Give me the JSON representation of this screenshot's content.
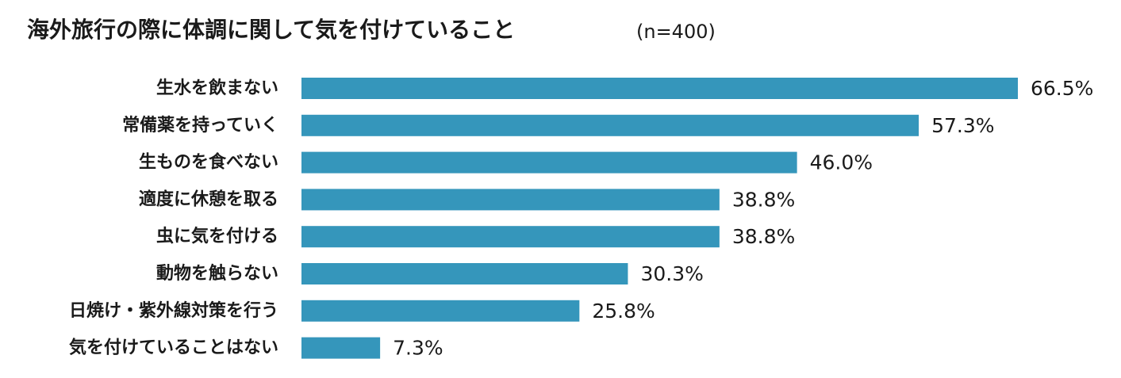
{
  "chart_data": {
    "type": "bar",
    "orientation": "horizontal",
    "title": "海外旅行の際に体調に関して気を付けていること",
    "subtitle": "(n=400)",
    "categories": [
      "生水を飲まない",
      "常備薬を持っていく",
      "生ものを食べない",
      "適度に休憩を取る",
      "虫に気を付ける",
      "動物を触らない",
      "日焼け・紫外線対策を行う",
      "気を付けていることはない"
    ],
    "values": [
      66.5,
      57.3,
      46.0,
      38.8,
      38.8,
      30.3,
      25.8,
      7.3
    ],
    "value_labels": [
      "66.5%",
      "57.3%",
      "46.0%",
      "38.8%",
      "38.8%",
      "30.3%",
      "25.8%",
      "7.3%"
    ],
    "unit": "%",
    "xlim": [
      0,
      66.5
    ],
    "grid": false,
    "bar_color": "#3596bb"
  }
}
